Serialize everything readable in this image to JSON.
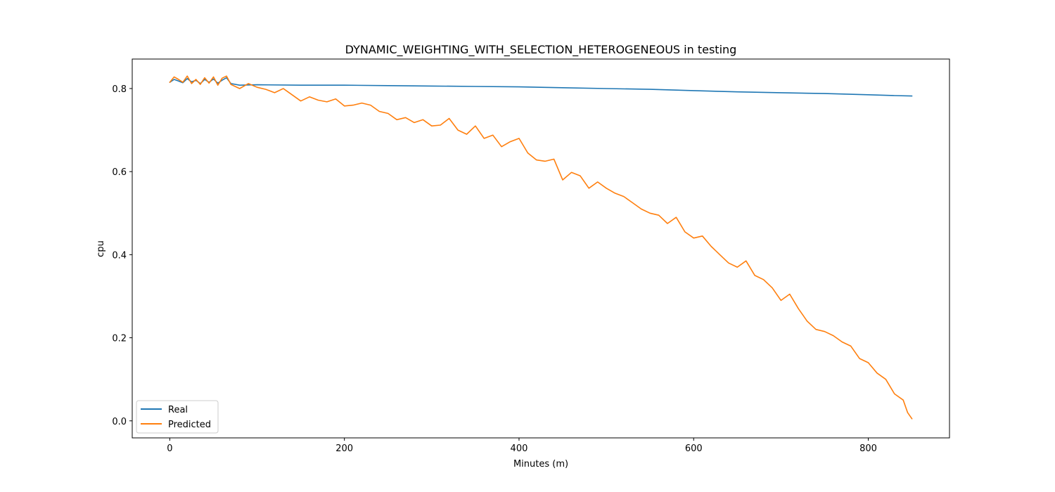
{
  "chart_data": {
    "type": "line",
    "title": "DYNAMIC_WEIGHTING_WITH_SELECTION_HETEROGENEOUS in testing",
    "xlabel": "Minutes (m)",
    "ylabel": "cpu",
    "xlim": [
      -43,
      893
    ],
    "ylim": [
      -0.041,
      0.871
    ],
    "xticks": [
      0,
      200,
      400,
      600,
      800
    ],
    "yticks": [
      0.0,
      0.2,
      0.4,
      0.6,
      0.8
    ],
    "xtick_labels": [
      "0",
      "200",
      "400",
      "600",
      "800"
    ],
    "ytick_labels": [
      "0.0",
      "0.2",
      "0.4",
      "0.6",
      "0.8"
    ],
    "grid": false,
    "legend": {
      "position": "lower-left"
    },
    "series": [
      {
        "name": "Real",
        "color": "#1f77b4",
        "x": [
          0,
          5,
          10,
          15,
          20,
          25,
          30,
          35,
          40,
          45,
          50,
          55,
          60,
          65,
          70,
          80,
          100,
          150,
          200,
          250,
          300,
          350,
          400,
          450,
          500,
          550,
          600,
          650,
          700,
          750,
          800,
          830,
          850
        ],
        "y": [
          0.815,
          0.822,
          0.818,
          0.814,
          0.824,
          0.816,
          0.82,
          0.812,
          0.822,
          0.815,
          0.823,
          0.813,
          0.82,
          0.826,
          0.812,
          0.808,
          0.809,
          0.808,
          0.808,
          0.807,
          0.806,
          0.805,
          0.804,
          0.802,
          0.8,
          0.798,
          0.795,
          0.792,
          0.79,
          0.788,
          0.785,
          0.783,
          0.782
        ]
      },
      {
        "name": "Predicted",
        "color": "#ff7f0e",
        "x": [
          0,
          5,
          10,
          15,
          20,
          25,
          30,
          35,
          40,
          45,
          50,
          55,
          60,
          65,
          70,
          80,
          90,
          100,
          110,
          120,
          130,
          140,
          150,
          160,
          170,
          180,
          190,
          200,
          210,
          220,
          230,
          240,
          250,
          260,
          270,
          280,
          290,
          300,
          310,
          320,
          330,
          340,
          350,
          360,
          370,
          380,
          390,
          400,
          410,
          420,
          430,
          440,
          450,
          460,
          470,
          480,
          490,
          500,
          510,
          520,
          530,
          540,
          550,
          560,
          570,
          580,
          590,
          600,
          610,
          620,
          630,
          640,
          650,
          660,
          670,
          680,
          690,
          700,
          710,
          720,
          730,
          740,
          750,
          760,
          770,
          780,
          790,
          800,
          810,
          820,
          830,
          840,
          845,
          850
        ],
        "y": [
          0.815,
          0.828,
          0.822,
          0.815,
          0.83,
          0.812,
          0.822,
          0.81,
          0.826,
          0.813,
          0.828,
          0.808,
          0.825,
          0.83,
          0.81,
          0.8,
          0.812,
          0.803,
          0.798,
          0.79,
          0.8,
          0.785,
          0.77,
          0.78,
          0.772,
          0.768,
          0.775,
          0.758,
          0.76,
          0.765,
          0.76,
          0.745,
          0.74,
          0.725,
          0.73,
          0.718,
          0.725,
          0.71,
          0.712,
          0.728,
          0.7,
          0.69,
          0.71,
          0.68,
          0.688,
          0.66,
          0.672,
          0.68,
          0.645,
          0.628,
          0.625,
          0.63,
          0.58,
          0.598,
          0.59,
          0.56,
          0.575,
          0.56,
          0.548,
          0.54,
          0.525,
          0.51,
          0.5,
          0.495,
          0.475,
          0.49,
          0.455,
          0.44,
          0.445,
          0.42,
          0.4,
          0.38,
          0.37,
          0.385,
          0.35,
          0.34,
          0.32,
          0.29,
          0.305,
          0.27,
          0.24,
          0.22,
          0.215,
          0.205,
          0.19,
          0.18,
          0.15,
          0.14,
          0.115,
          0.1,
          0.065,
          0.05,
          0.02,
          0.005
        ]
      }
    ]
  }
}
